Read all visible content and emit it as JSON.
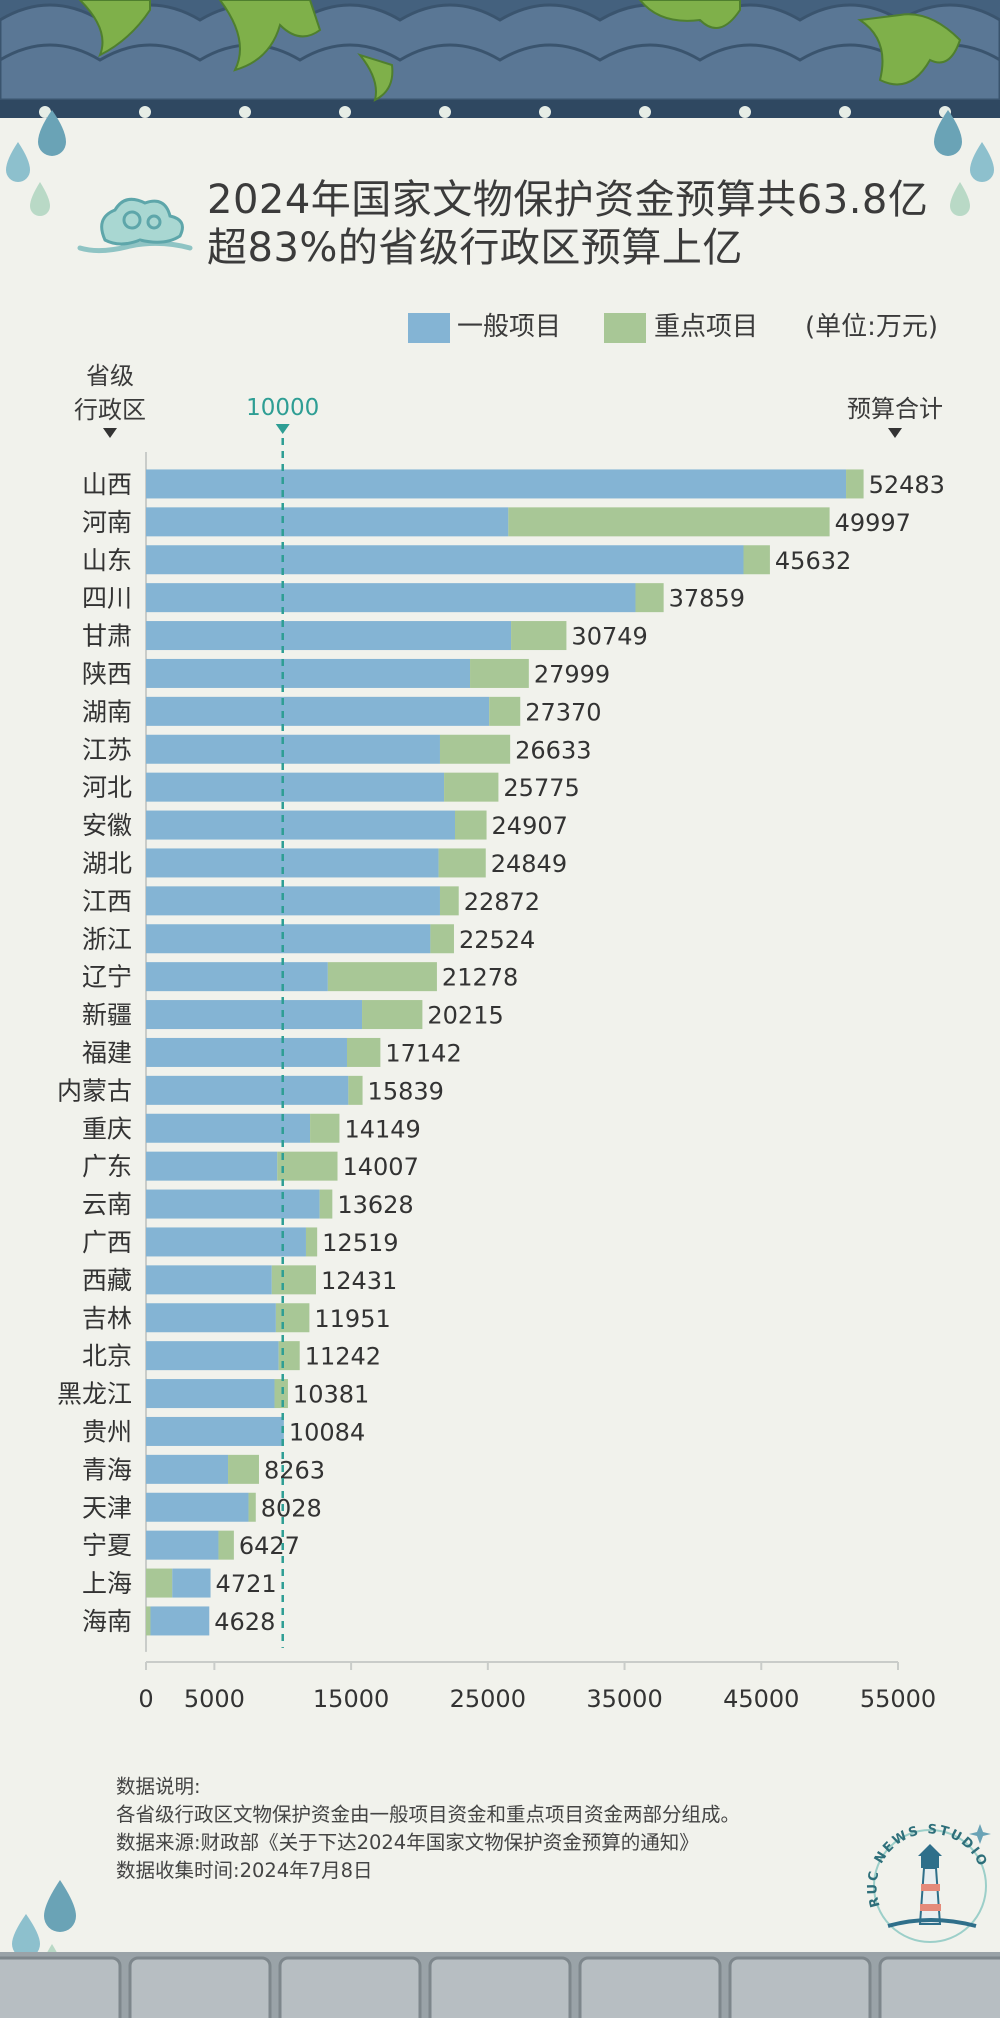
{
  "header": {
    "title_line1": "2024年国家文物保护资金预算共63.8亿",
    "title_line2": "超83%的省级行政区预算上亿"
  },
  "legend": {
    "general_label": "一般项目",
    "key_label": "重点项目",
    "unit_label": "(单位:万元)"
  },
  "colors": {
    "general": "#84b4d4",
    "key": "#a8c796",
    "reference_line": "#2e9e94",
    "background": "#f1f2ec"
  },
  "chart_data": {
    "type": "bar",
    "orientation": "horizontal",
    "stacked": true,
    "y_axis_title": "省级\n行政区",
    "total_column_title": "预算合计",
    "reference_line": {
      "value": 10000,
      "label": "10000"
    },
    "xlim": [
      0,
      55000
    ],
    "x_ticks": [
      0,
      5000,
      15000,
      25000,
      35000,
      45000,
      55000
    ],
    "categories": [
      "山西",
      "河南",
      "山东",
      "四川",
      "甘肃",
      "陕西",
      "湖南",
      "江苏",
      "河北",
      "安徽",
      "湖北",
      "江西",
      "浙江",
      "辽宁",
      "新疆",
      "福建",
      "内蒙古",
      "重庆",
      "广东",
      "云南",
      "广西",
      "西藏",
      "吉林",
      "北京",
      "黑龙江",
      "贵州",
      "青海",
      "天津",
      "宁夏",
      "上海",
      "海南"
    ],
    "totals": [
      52483,
      49997,
      45632,
      37859,
      30749,
      27999,
      27370,
      26633,
      25775,
      24907,
      24849,
      22872,
      22524,
      21278,
      20215,
      17142,
      15839,
      14149,
      14007,
      13628,
      12519,
      12431,
      11951,
      11242,
      10381,
      10084,
      8263,
      8028,
      6427,
      4721,
      4628
    ],
    "series": [
      {
        "name": "一般项目",
        "values": [
          51200,
          26500,
          43700,
          35800,
          26700,
          23700,
          25100,
          21500,
          21800,
          22600,
          21400,
          21500,
          20800,
          13300,
          15800,
          14700,
          14800,
          12000,
          9600,
          12700,
          11700,
          9200,
          9500,
          9700,
          9400,
          10084,
          6000,
          7500,
          5300,
          2800,
          4300
        ]
      },
      {
        "name": "重点项目",
        "values": [
          1283,
          23497,
          1932,
          2059,
          4049,
          4299,
          2270,
          5133,
          3975,
          2307,
          3449,
          1372,
          1724,
          7978,
          4415,
          2442,
          1039,
          2149,
          4407,
          928,
          819,
          3231,
          2451,
          1542,
          981,
          0,
          2263,
          528,
          1127,
          1921,
          328
        ]
      }
    ],
    "legend_position": "top-right"
  },
  "notes": {
    "line1": "数据说明:",
    "line2": "各省级行政区文物保护资金由一般项目资金和重点项目资金两部分组成。",
    "line3": "数据来源:财政部《关于下达2024年国家文物保护资金预算的通知》",
    "line4": "数据收集时间:2024年7月8日"
  },
  "logo": {
    "text": "RUC NEWS STUDIO"
  }
}
